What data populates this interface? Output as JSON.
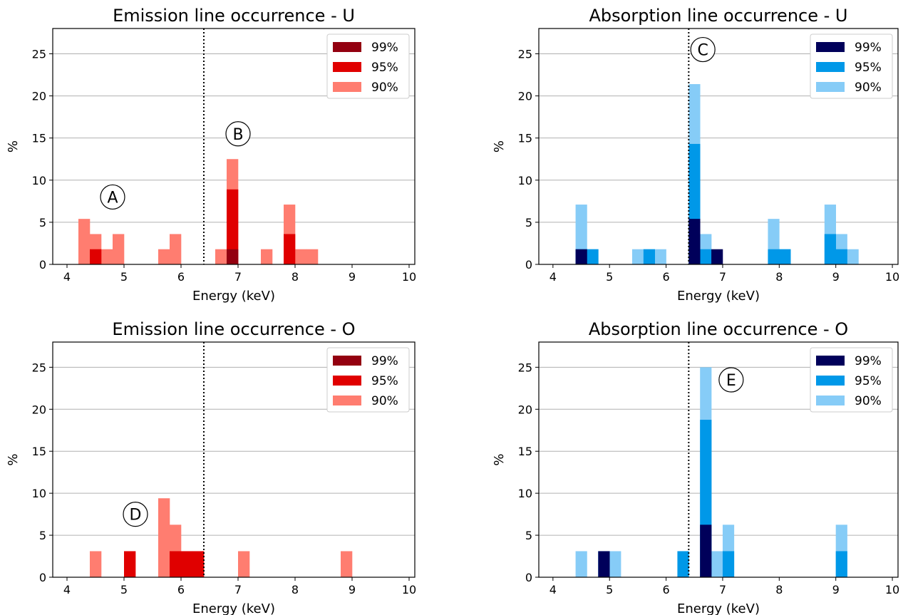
{
  "colors": {
    "emission": {
      "99%": "#930010",
      "95%": "#e00000",
      "90%": "#ff7d70"
    },
    "absorption": {
      "99%": "#00005a",
      "95%": "#0098e8",
      "90%": "#86ccf7"
    }
  },
  "chart_data": [
    {
      "type": "bar",
      "title": "Emission line occurrence - U",
      "xlabel": "Energy (keV)",
      "ylabel": "%",
      "xlim": [
        3.75,
        10.1
      ],
      "ylim": [
        0,
        28
      ],
      "xticks": [
        4,
        5,
        6,
        7,
        8,
        9,
        10
      ],
      "yticks": [
        0,
        5,
        10,
        15,
        20,
        25
      ],
      "grid": "y",
      "legend_position": "top-right",
      "vline_x": 6.4,
      "bin_width": 0.2,
      "palette": "emission",
      "series": [
        {
          "name": "90%",
          "bins": [
            [
              4.2,
              5.4
            ],
            [
              4.4,
              3.6
            ],
            [
              4.6,
              1.8
            ],
            [
              4.8,
              3.6
            ],
            [
              5.6,
              1.8
            ],
            [
              5.8,
              3.6
            ],
            [
              6.6,
              1.8
            ],
            [
              6.8,
              12.5
            ],
            [
              7.4,
              1.8
            ],
            [
              7.8,
              7.1
            ],
            [
              8.0,
              1.8
            ],
            [
              8.2,
              1.8
            ]
          ]
        },
        {
          "name": "95%",
          "bins": [
            [
              4.4,
              1.8
            ],
            [
              6.8,
              8.9
            ],
            [
              7.8,
              3.6
            ]
          ]
        },
        {
          "name": "99%",
          "bins": [
            [
              6.8,
              1.8
            ]
          ]
        }
      ],
      "annotations": [
        {
          "label": "A",
          "x": 4.8,
          "y": 8.0
        },
        {
          "label": "B",
          "x": 7.0,
          "y": 15.5
        }
      ]
    },
    {
      "type": "bar",
      "title": "Absorption line occurrence - U",
      "xlabel": "Energy (keV)",
      "ylabel": "%",
      "xlim": [
        3.75,
        10.1
      ],
      "ylim": [
        0,
        28
      ],
      "xticks": [
        4,
        5,
        6,
        7,
        8,
        9,
        10
      ],
      "yticks": [
        0,
        5,
        10,
        15,
        20,
        25
      ],
      "grid": "y",
      "legend_position": "top-right",
      "vline_x": 6.4,
      "bin_width": 0.2,
      "palette": "absorption",
      "series": [
        {
          "name": "90%",
          "bins": [
            [
              4.4,
              7.1
            ],
            [
              4.6,
              1.8
            ],
            [
              5.4,
              1.8
            ],
            [
              5.6,
              1.8
            ],
            [
              5.8,
              1.8
            ],
            [
              6.4,
              21.4
            ],
            [
              6.6,
              3.6
            ],
            [
              7.8,
              5.4
            ],
            [
              8.0,
              1.8
            ],
            [
              8.8,
              7.1
            ],
            [
              9.0,
              3.6
            ],
            [
              9.2,
              1.8
            ]
          ]
        },
        {
          "name": "95%",
          "bins": [
            [
              4.4,
              1.8
            ],
            [
              4.6,
              1.8
            ],
            [
              5.6,
              1.8
            ],
            [
              6.4,
              14.3
            ],
            [
              6.6,
              1.8
            ],
            [
              7.8,
              1.8
            ],
            [
              8.0,
              1.8
            ],
            [
              8.8,
              3.6
            ],
            [
              9.0,
              1.8
            ]
          ]
        },
        {
          "name": "99%",
          "bins": [
            [
              4.4,
              1.8
            ],
            [
              6.4,
              5.4
            ],
            [
              6.8,
              1.8
            ]
          ]
        }
      ],
      "annotations": [
        {
          "label": "C",
          "x": 6.65,
          "y": 25.5
        }
      ]
    },
    {
      "type": "bar",
      "title": "Emission line occurrence - O",
      "xlabel": "Energy (keV)",
      "ylabel": "%",
      "xlim": [
        3.75,
        10.1
      ],
      "ylim": [
        0,
        28
      ],
      "xticks": [
        4,
        5,
        6,
        7,
        8,
        9,
        10
      ],
      "yticks": [
        0,
        5,
        10,
        15,
        20,
        25
      ],
      "grid": "y",
      "legend_position": "top-right",
      "vline_x": 6.4,
      "bin_width": 0.2,
      "palette": "emission",
      "series": [
        {
          "name": "90%",
          "bins": [
            [
              4.4,
              3.1
            ],
            [
              5.0,
              3.1
            ],
            [
              5.6,
              9.4
            ],
            [
              5.8,
              6.25
            ],
            [
              6.0,
              3.1
            ],
            [
              6.2,
              3.1
            ],
            [
              7.0,
              3.1
            ],
            [
              8.8,
              3.1
            ]
          ]
        },
        {
          "name": "95%",
          "bins": [
            [
              5.0,
              3.1
            ],
            [
              5.8,
              3.1
            ],
            [
              6.0,
              3.1
            ],
            [
              6.2,
              3.1
            ]
          ]
        },
        {
          "name": "99%",
          "bins": []
        }
      ],
      "annotations": [
        {
          "label": "D",
          "x": 5.2,
          "y": 7.5
        }
      ]
    },
    {
      "type": "bar",
      "title": "Absorption line occurrence - O",
      "xlabel": "Energy (keV)",
      "ylabel": "%",
      "xlim": [
        3.75,
        10.1
      ],
      "ylim": [
        0,
        28
      ],
      "xticks": [
        4,
        5,
        6,
        7,
        8,
        9,
        10
      ],
      "yticks": [
        0,
        5,
        10,
        15,
        20,
        25
      ],
      "grid": "y",
      "legend_position": "top-right",
      "vline_x": 6.4,
      "bin_width": 0.2,
      "palette": "absorption",
      "series": [
        {
          "name": "90%",
          "bins": [
            [
              4.4,
              3.1
            ],
            [
              4.8,
              3.1
            ],
            [
              5.0,
              3.1
            ],
            [
              6.2,
              3.1
            ],
            [
              6.6,
              25.0
            ],
            [
              6.8,
              3.1
            ],
            [
              7.0,
              6.25
            ],
            [
              9.0,
              6.25
            ]
          ]
        },
        {
          "name": "95%",
          "bins": [
            [
              4.8,
              3.1
            ],
            [
              6.2,
              3.1
            ],
            [
              6.6,
              18.75
            ],
            [
              7.0,
              3.1
            ],
            [
              9.0,
              3.1
            ]
          ]
        },
        {
          "name": "99%",
          "bins": [
            [
              4.8,
              3.1
            ],
            [
              6.6,
              6.25
            ]
          ]
        }
      ],
      "annotations": [
        {
          "label": "E",
          "x": 7.15,
          "y": 23.5
        }
      ]
    }
  ]
}
